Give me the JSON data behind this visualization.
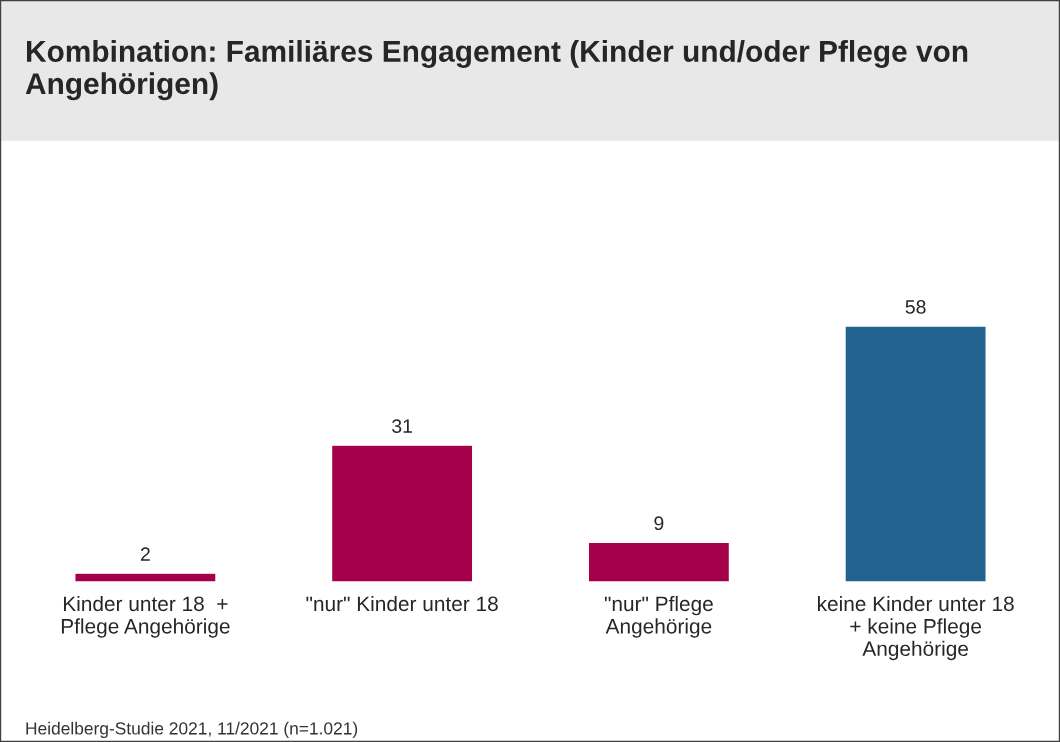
{
  "chart_data": {
    "type": "bar",
    "title": "Kombination: Familiäres Engagement (Kinder und/oder Pflege von Angehörigen)",
    "categories": [
      "Kinder unter 18  +\nPflege Angehörige",
      "\"nur\" Kinder unter 18",
      "\"nur\" Pflege\nAngehörige",
      "keine Kinder unter 18\n+ keine Pflege\nAngehörige"
    ],
    "values": [
      2,
      31,
      9,
      58
    ],
    "colors": [
      "#a5004a",
      "#a5004a",
      "#a5004a",
      "#236392"
    ],
    "data_labels": true,
    "grid": false,
    "legend": false,
    "tick_labels": "x",
    "annotations": [
      "Heidelberg-Studie 2021, 11/2021 (n=1.021)"
    ]
  }
}
